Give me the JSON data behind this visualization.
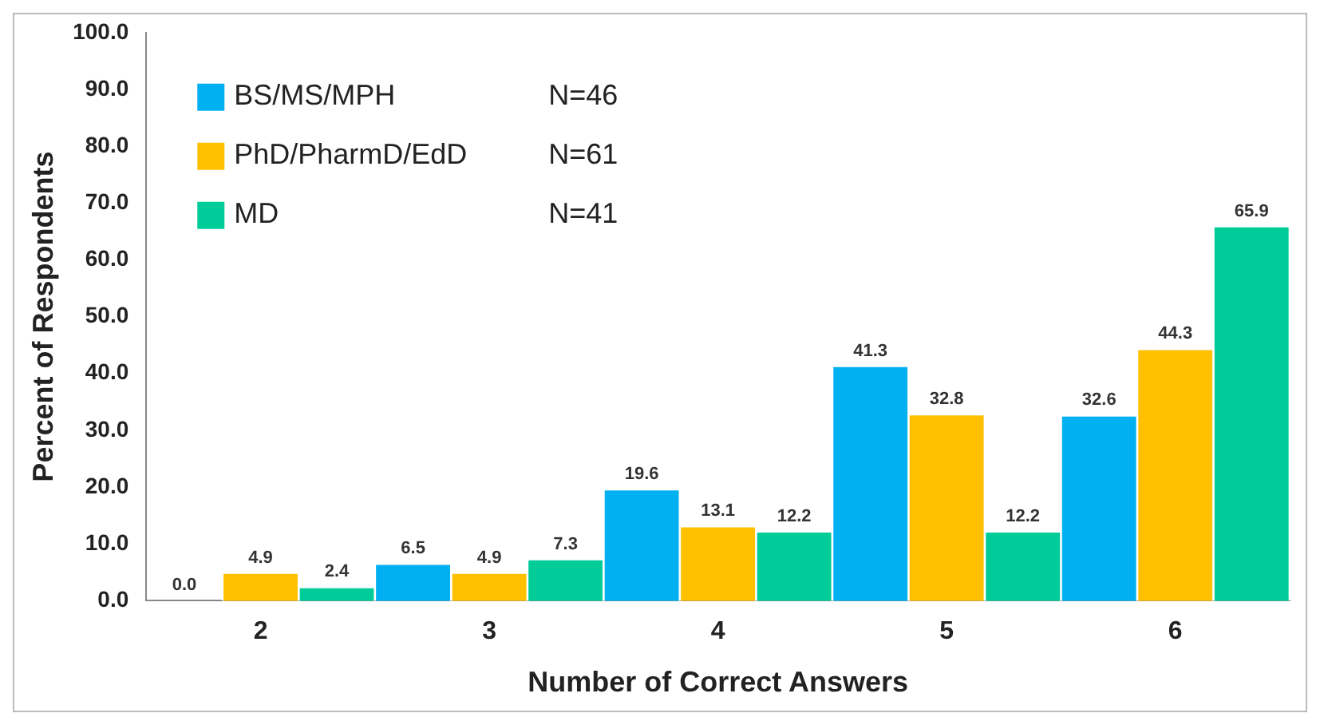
{
  "chart_data": {
    "type": "bar",
    "xlabel": "Number of Correct Answers",
    "ylabel": "Percent of Respondents",
    "categories": [
      "2",
      "3",
      "4",
      "5",
      "6"
    ],
    "series": [
      {
        "name": "BS/MS/MPH",
        "color": "#00b0f0",
        "values": [
          0,
          6.5,
          19.6,
          41.3,
          32.6
        ],
        "value_labels": [
          "0.0",
          "6.5",
          "19.6",
          "41.3",
          "32.6"
        ]
      },
      {
        "name": "PhD/PharmD/EdD",
        "color": "#ffc000",
        "values": [
          4.9,
          4.9,
          13.1,
          32.8,
          44.3
        ],
        "value_labels": [
          "4.9",
          "4.9",
          "13.1",
          "32.8",
          "44.3"
        ]
      },
      {
        "name": "MD",
        "color": "#00cc99",
        "values": [
          2.4,
          7.3,
          12.2,
          12.2,
          65.9
        ],
        "value_labels": [
          "2.4",
          "7.3",
          "12.2",
          "12.2",
          "65.9"
        ]
      }
    ],
    "annotations": [
      "N=46",
      "N=61",
      "N=41"
    ],
    "ylim": [
      0,
      100
    ],
    "yticks": [
      {
        "value": 0,
        "label": "0.0"
      },
      {
        "value": 10,
        "label": "10.0"
      },
      {
        "value": 20,
        "label": "20.0"
      },
      {
        "value": 30,
        "label": "30.0"
      },
      {
        "value": 40,
        "label": "40.0"
      },
      {
        "value": 50,
        "label": "50.0"
      },
      {
        "value": 60,
        "label": "60.0"
      },
      {
        "value": 70,
        "label": "70.0"
      },
      {
        "value": 80,
        "label": "80.0"
      },
      {
        "value": 90,
        "label": "90.0"
      },
      {
        "value": 100,
        "label": "100.0"
      }
    ],
    "grid": false,
    "legend": "top left"
  }
}
